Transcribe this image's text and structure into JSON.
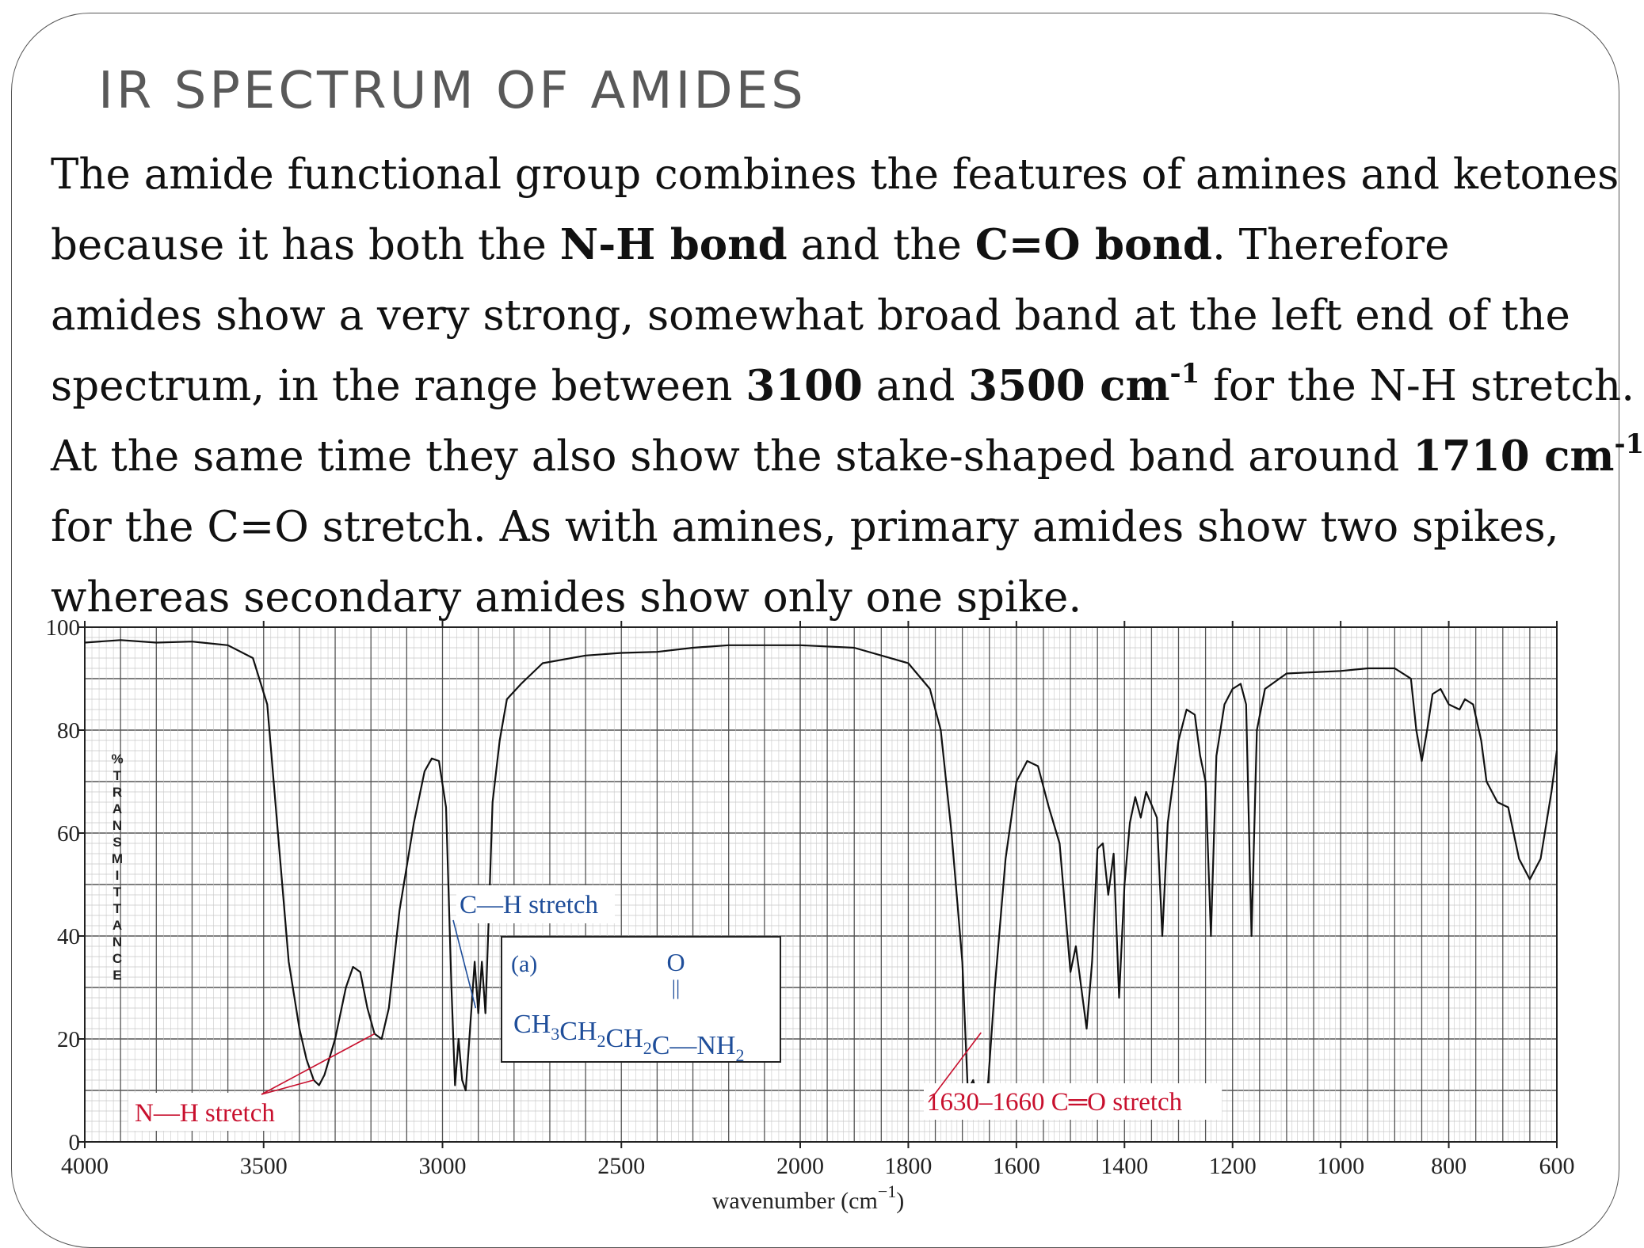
{
  "slide": {
    "title": "IR SPECTRUM OF AMIDES",
    "paragraph": {
      "t1": "The amide functional group combines the features of amines and ketones",
      "t2": "because it has both the ",
      "t3": "N-H bond",
      "t4": " and the ",
      "t5": "C=O bond",
      "t6": ". Therefore",
      "t7": "amides show a very strong, somewhat broad band at the left end of the",
      "t8": "spectrum, in the range between ",
      "t9": "3100",
      "t10": " and ",
      "t11": "3500 cm",
      "t12": "-1",
      "t13": " for the N-H stretch.",
      "t14": "At the same time they also show the stake-shaped band around ",
      "t15": "1710 cm",
      "t16": "-1",
      "t17": "for the C=O stretch. As with amines, primary amides show two spikes,",
      "t18": "whereas secondary amides show only one spike."
    }
  },
  "chart_data": {
    "type": "line",
    "xlabel": "wavenumber (cm−1)",
    "ylabel": "% TRANSMITTANCE",
    "xlim": [
      4000,
      600
    ],
    "ylim": [
      0,
      100
    ],
    "x_scale": "piecewise: 4000–2000 at 2x the scale of 2000–600",
    "x_ticks": [
      "4000",
      "3500",
      "3000",
      "2500",
      "2000",
      "1800",
      "1600",
      "1400",
      "1200",
      "1000",
      "800",
      "600"
    ],
    "y_ticks": [
      "0",
      "20",
      "40",
      "60",
      "80",
      "100"
    ],
    "grid": true,
    "series": [
      {
        "color": "#111111",
        "points": [
          [
            4000,
            97
          ],
          [
            3900,
            97.5
          ],
          [
            3800,
            97
          ],
          [
            3700,
            97.2
          ],
          [
            3600,
            96.5
          ],
          [
            3530,
            94
          ],
          [
            3490,
            85
          ],
          [
            3460,
            60
          ],
          [
            3430,
            35
          ],
          [
            3400,
            22
          ],
          [
            3380,
            16
          ],
          [
            3360,
            12
          ],
          [
            3345,
            11
          ],
          [
            3330,
            13
          ],
          [
            3300,
            20
          ],
          [
            3270,
            30
          ],
          [
            3250,
            34
          ],
          [
            3230,
            33
          ],
          [
            3210,
            26
          ],
          [
            3190,
            21
          ],
          [
            3170,
            20
          ],
          [
            3150,
            26
          ],
          [
            3120,
            45
          ],
          [
            3080,
            62
          ],
          [
            3050,
            72
          ],
          [
            3030,
            74.5
          ],
          [
            3010,
            74
          ],
          [
            2990,
            65
          ],
          [
            2975,
            30
          ],
          [
            2965,
            11
          ],
          [
            2955,
            20
          ],
          [
            2945,
            12
          ],
          [
            2935,
            10
          ],
          [
            2925,
            20
          ],
          [
            2910,
            35
          ],
          [
            2900,
            25
          ],
          [
            2890,
            35
          ],
          [
            2880,
            25
          ],
          [
            2870,
            45
          ],
          [
            2860,
            66
          ],
          [
            2840,
            78
          ],
          [
            2820,
            86
          ],
          [
            2780,
            89
          ],
          [
            2720,
            93
          ],
          [
            2600,
            94.5
          ],
          [
            2500,
            95
          ],
          [
            2400,
            95.2
          ],
          [
            2300,
            96
          ],
          [
            2200,
            96.5
          ],
          [
            2100,
            96.5
          ],
          [
            2000,
            96.5
          ],
          [
            1900,
            96
          ],
          [
            1800,
            93
          ],
          [
            1760,
            88
          ],
          [
            1740,
            80
          ],
          [
            1720,
            60
          ],
          [
            1700,
            35
          ],
          [
            1690,
            10
          ],
          [
            1680,
            12
          ],
          [
            1672,
            8
          ],
          [
            1662,
            5
          ],
          [
            1652,
            12
          ],
          [
            1640,
            30
          ],
          [
            1620,
            55
          ],
          [
            1600,
            70
          ],
          [
            1580,
            74
          ],
          [
            1560,
            73
          ],
          [
            1540,
            65
          ],
          [
            1520,
            58
          ],
          [
            1500,
            33
          ],
          [
            1490,
            38
          ],
          [
            1480,
            30
          ],
          [
            1470,
            22
          ],
          [
            1460,
            35
          ],
          [
            1450,
            57
          ],
          [
            1440,
            58
          ],
          [
            1430,
            48
          ],
          [
            1420,
            56
          ],
          [
            1410,
            28
          ],
          [
            1400,
            50
          ],
          [
            1390,
            62
          ],
          [
            1380,
            67
          ],
          [
            1370,
            63
          ],
          [
            1360,
            68
          ],
          [
            1340,
            63
          ],
          [
            1330,
            40
          ],
          [
            1320,
            62
          ],
          [
            1300,
            78
          ],
          [
            1285,
            84
          ],
          [
            1270,
            83
          ],
          [
            1260,
            75
          ],
          [
            1250,
            70
          ],
          [
            1240,
            40
          ],
          [
            1230,
            75
          ],
          [
            1215,
            85
          ],
          [
            1200,
            88
          ],
          [
            1185,
            89
          ],
          [
            1175,
            85
          ],
          [
            1165,
            40
          ],
          [
            1155,
            80
          ],
          [
            1140,
            88
          ],
          [
            1100,
            91
          ],
          [
            1000,
            91.5
          ],
          [
            950,
            92
          ],
          [
            900,
            92
          ],
          [
            870,
            90
          ],
          [
            860,
            80
          ],
          [
            850,
            74
          ],
          [
            840,
            80
          ],
          [
            830,
            87
          ],
          [
            815,
            88
          ],
          [
            800,
            85
          ],
          [
            780,
            84
          ],
          [
            770,
            86
          ],
          [
            755,
            85
          ],
          [
            740,
            78
          ],
          [
            730,
            70
          ],
          [
            710,
            66
          ],
          [
            690,
            65
          ],
          [
            670,
            55
          ],
          [
            650,
            51
          ],
          [
            630,
            55
          ],
          [
            610,
            68
          ],
          [
            600,
            76
          ]
        ]
      }
    ],
    "structure": {
      "label": "(a)",
      "oxygen": "O",
      "double_bond": "||",
      "formula": "CH3CH2CH2C—NH2",
      "frame_color": "#222222",
      "text_color": "#1f4e9a"
    },
    "annotations": [
      {
        "text": "N—H stretch",
        "color": "#c8102e",
        "anchors": [
          3360,
          3190
        ]
      },
      {
        "text": "C—H stretch",
        "color": "#1f4e9a",
        "anchors": [
          2925
        ]
      },
      {
        "text": "1630–1660 C═O stretch",
        "color": "#c8102e",
        "anchors": [
          1680
        ]
      }
    ]
  }
}
